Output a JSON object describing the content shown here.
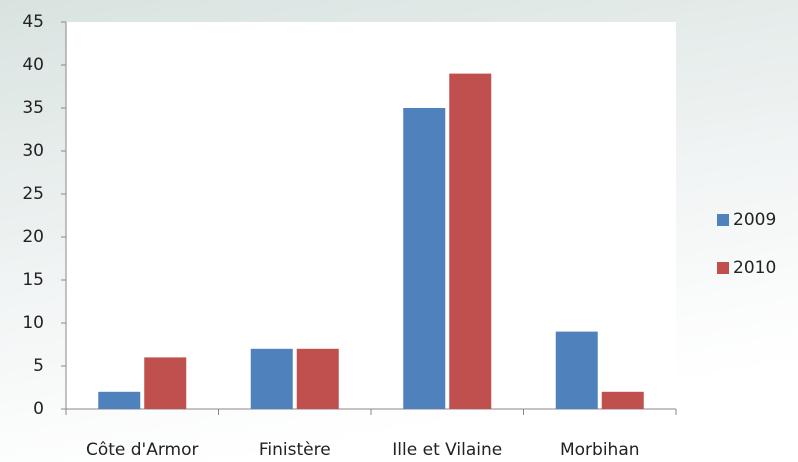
{
  "chart_data": {
    "type": "bar",
    "categories": [
      "Côte d'Armor",
      "Finistère",
      "Ille et Vilaine",
      "Morbihan"
    ],
    "series": [
      {
        "name": "2009",
        "color": "#4f81bd",
        "values": [
          2,
          7,
          35,
          9
        ]
      },
      {
        "name": "2010",
        "color": "#c0504d",
        "values": [
          6,
          7,
          39,
          2
        ]
      }
    ],
    "ylim": [
      0,
      45
    ],
    "yticks": [
      0,
      5,
      10,
      15,
      20,
      25,
      30,
      35,
      40,
      45
    ],
    "grid": false,
    "legend": "right"
  }
}
